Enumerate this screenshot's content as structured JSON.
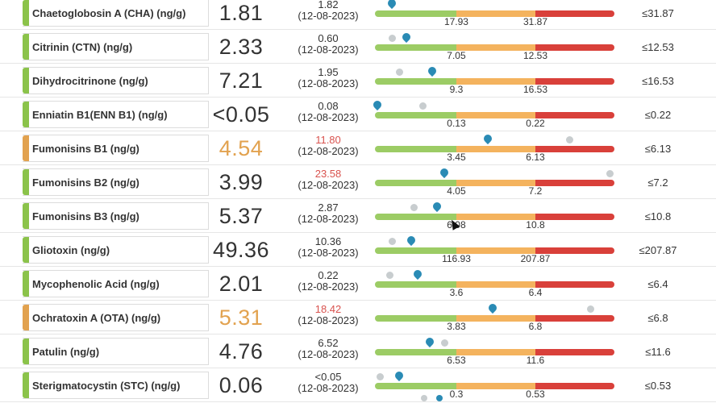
{
  "colors": {
    "ok": "#8bc34a",
    "warn": "#e2a24f",
    "bar_green": "#9ccc65",
    "bar_orange": "#f4b35e",
    "bar_red": "#d9403a",
    "marker_current": "#2a8bb5",
    "marker_previous": "#c8cdcf"
  },
  "rows": [
    {
      "name": "Chaetoglobosin A (CHA) (ng/g)",
      "status": "ok",
      "value": "1.81",
      "value_warn": false,
      "prev_value": "1.82",
      "prev_date": "(12-08-2023)",
      "prev_warn": false,
      "tick1": "17.93",
      "tick2": "31.87",
      "limit": "≤31.87",
      "current_pos": 0.07,
      "previous_pos": null
    },
    {
      "name": "Citrinin (CTN) (ng/g)",
      "status": "ok",
      "value": "2.33",
      "value_warn": false,
      "prev_value": "0.60",
      "prev_date": "(12-08-2023)",
      "prev_warn": false,
      "tick1": "7.05",
      "tick2": "12.53",
      "limit": "≤12.53",
      "current_pos": 0.13,
      "previous_pos": 0.07
    },
    {
      "name": "Dihydrocitrinone (ng/g)",
      "status": "ok",
      "value": "7.21",
      "value_warn": false,
      "prev_value": "1.95",
      "prev_date": "(12-08-2023)",
      "prev_warn": false,
      "tick1": "9.3",
      "tick2": "16.53",
      "limit": "≤16.53",
      "current_pos": 0.24,
      "previous_pos": 0.1
    },
    {
      "name": "Enniatin B1(ENN B1) (ng/g)",
      "status": "ok",
      "value": "<0.05",
      "value_warn": false,
      "prev_value": "0.08",
      "prev_date": "(12-08-2023)",
      "prev_warn": false,
      "tick1": "0.13",
      "tick2": "0.22",
      "limit": "≤0.22",
      "current_pos": 0.01,
      "previous_pos": 0.2
    },
    {
      "name": "Fumonisins B1 (ng/g)",
      "status": "warn",
      "value": "4.54",
      "value_warn": true,
      "prev_value": "11.80",
      "prev_date": "(12-08-2023)",
      "prev_warn": true,
      "tick1": "3.45",
      "tick2": "6.13",
      "limit": "≤6.13",
      "current_pos": 0.47,
      "previous_pos": 0.81
    },
    {
      "name": "Fumonisins B2 (ng/g)",
      "status": "ok",
      "value": "3.99",
      "value_warn": false,
      "prev_value": "23.58",
      "prev_date": "(12-08-2023)",
      "prev_warn": true,
      "tick1": "4.05",
      "tick2": "7.2",
      "limit": "≤7.2",
      "current_pos": 0.29,
      "previous_pos": 0.98
    },
    {
      "name": "Fumonisins B3 (ng/g)",
      "status": "ok",
      "value": "5.37",
      "value_warn": false,
      "prev_value": "2.87",
      "prev_date": "(12-08-2023)",
      "prev_warn": false,
      "tick1": "6.08",
      "tick2": "10.8",
      "limit": "≤10.8",
      "current_pos": 0.26,
      "previous_pos": 0.16
    },
    {
      "name": "Gliotoxin (ng/g)",
      "status": "ok",
      "value": "49.36",
      "value_warn": false,
      "prev_value": "10.36",
      "prev_date": "(12-08-2023)",
      "prev_warn": false,
      "tick1": "116.93",
      "tick2": "207.87",
      "limit": "≤207.87",
      "current_pos": 0.15,
      "previous_pos": 0.07
    },
    {
      "name": "Mycophenolic Acid (ng/g)",
      "status": "ok",
      "value": "2.01",
      "value_warn": false,
      "prev_value": "0.22",
      "prev_date": "(12-08-2023)",
      "prev_warn": false,
      "tick1": "3.6",
      "tick2": "6.4",
      "limit": "≤6.4",
      "current_pos": 0.18,
      "previous_pos": 0.06
    },
    {
      "name": "Ochratoxin A (OTA) (ng/g)",
      "status": "warn",
      "value": "5.31",
      "value_warn": true,
      "prev_value": "18.42",
      "prev_date": "(12-08-2023)",
      "prev_warn": true,
      "tick1": "3.83",
      "tick2": "6.8",
      "limit": "≤6.8",
      "current_pos": 0.49,
      "previous_pos": 0.9
    },
    {
      "name": "Patulin (ng/g)",
      "status": "ok",
      "value": "4.76",
      "value_warn": false,
      "prev_value": "6.52",
      "prev_date": "(12-08-2023)",
      "prev_warn": false,
      "tick1": "6.53",
      "tick2": "11.6",
      "limit": "≤11.6",
      "current_pos": 0.23,
      "previous_pos": 0.29
    },
    {
      "name": "Sterigmatocystin (STC) (ng/g)",
      "status": "ok",
      "value": "0.06",
      "value_warn": false,
      "prev_value": "<0.05",
      "prev_date": "(12-08-2023)",
      "prev_warn": false,
      "tick1": "0.3",
      "tick2": "0.53",
      "limit": "≤0.53",
      "current_pos": 0.1,
      "previous_pos": 0.02
    }
  ]
}
